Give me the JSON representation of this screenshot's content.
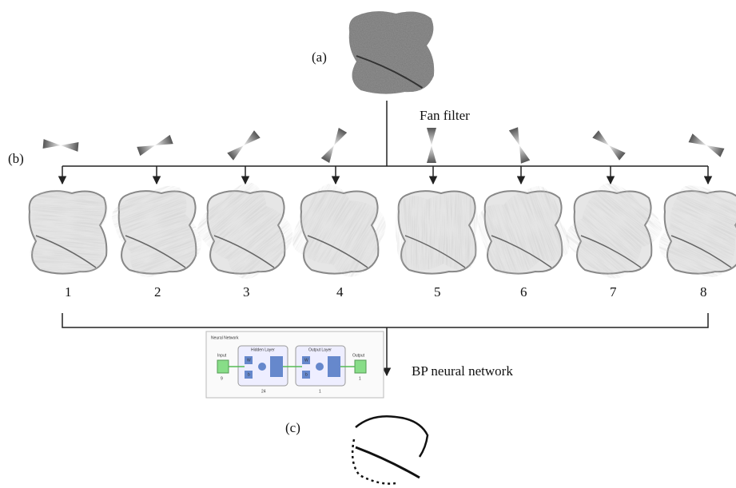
{
  "panel_a": {
    "label": "(a)"
  },
  "fan_filter": "Fan filter",
  "panel_b": {
    "label": "(b)",
    "images": [
      "1",
      "2",
      "3",
      "4",
      "5",
      "6",
      "7",
      "8"
    ]
  },
  "network": {
    "title": "Neural Network",
    "input": "Input",
    "input_size": "9",
    "hidden": "Hidden Layer",
    "hidden_size": "24",
    "output_layer": "Output Layer",
    "output_layer_size": "1",
    "output": "Output",
    "output_size": "1",
    "w": "W",
    "b": "b"
  },
  "bp_label": "BP neural network",
  "panel_c": {
    "label": "(c)"
  }
}
